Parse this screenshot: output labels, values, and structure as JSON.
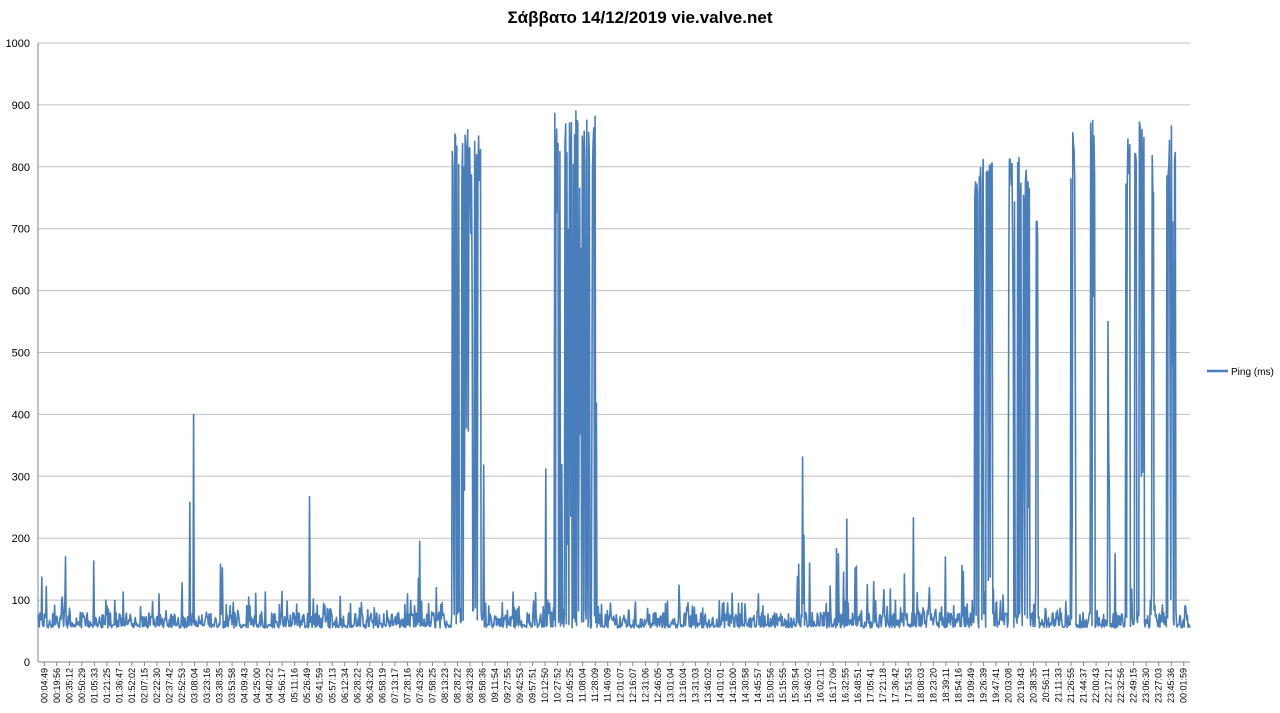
{
  "chart_data": {
    "type": "line",
    "title": "Σάββατο 14/12/2019 vie.valve.net",
    "xlabel": "",
    "ylabel": "",
    "ylim": [
      0,
      1000
    ],
    "yticks": [
      0,
      100,
      200,
      300,
      400,
      500,
      600,
      700,
      800,
      900,
      1000
    ],
    "grid": true,
    "legend_position": "right",
    "color": "#4a7ebb",
    "x_tick_labels": [
      "00:04:49",
      "00:19:56",
      "00:35:12",
      "00:50:29",
      "01:05:33",
      "01:21:25",
      "01:36:47",
      "01:52:02",
      "02:07:15",
      "02:22:30",
      "02:37:42",
      "02:52:53",
      "03:08:04",
      "03:23:16",
      "03:38:35",
      "03:53:58",
      "04:09:43",
      "04:25:00",
      "04:40:22",
      "04:56:17",
      "05:11:16",
      "05:26:49",
      "05:41:59",
      "05:57:13",
      "06:12:34",
      "06:28:22",
      "06:43:20",
      "06:58:19",
      "07:13:17",
      "07:28:16",
      "07:43:26",
      "07:58:25",
      "08:13:23",
      "08:28:22",
      "08:43:28",
      "08:58:36",
      "09:11:54",
      "09:27:55",
      "09:42:53",
      "09:57:51",
      "10:12:50",
      "10:27:52",
      "10:45:25",
      "11:08:04",
      "11:28:09",
      "11:46:09",
      "12:01:07",
      "12:16:07",
      "12:31:06",
      "12:46:05",
      "13:01:04",
      "13:16:04",
      "13:31:03",
      "13:46:02",
      "14:01:01",
      "14:16:00",
      "14:30:58",
      "14:45:57",
      "15:00:56",
      "15:15:55",
      "15:30:54",
      "15:46:02",
      "16:02:11",
      "16:17:09",
      "16:32:55",
      "16:48:51",
      "17:05:41",
      "17:21:18",
      "17:36:42",
      "17:51:53",
      "18:08:03",
      "18:23:20",
      "18:39:11",
      "18:54:16",
      "19:09:49",
      "19:26:39",
      "19:47:41",
      "20:03:08",
      "20:19:43",
      "20:38:35",
      "20:56:11",
      "21:11:33",
      "21:26:55",
      "21:44:37",
      "22:00:43",
      "22:17:21",
      "22:32:56",
      "22:49:15",
      "23:06:30",
      "23:27:03",
      "23:45:36",
      "00:01:59"
    ],
    "series": [
      {
        "name": "Ping (ms)",
        "baseline": [
          55,
          100
        ],
        "spikes": [
          [
            0.9,
            137
          ],
          [
            2.0,
            122
          ],
          [
            5.7,
            105
          ],
          [
            6.4,
            170
          ],
          [
            13.0,
            163
          ],
          [
            20.0,
            113
          ],
          [
            28.4,
            110
          ],
          [
            33.8,
            128
          ],
          [
            35.6,
            258
          ],
          [
            36.4,
            400
          ],
          [
            42.8,
            158
          ],
          [
            43.2,
            152
          ],
          [
            49.4,
            105
          ],
          [
            51.1,
            111
          ],
          [
            53.3,
            113
          ],
          [
            57.2,
            114
          ],
          [
            63.6,
            267
          ],
          [
            64.6,
            102
          ],
          [
            70.9,
            106
          ],
          [
            75.8,
            96
          ],
          [
            86.6,
            110
          ],
          [
            89.1,
            135
          ],
          [
            89.4,
            195
          ],
          [
            93.3,
            120
          ],
          [
            111.4,
            113
          ],
          [
            116.6,
            112
          ],
          [
            119.0,
            312
          ],
          [
            119.4,
            100
          ],
          [
            125.3,
            103
          ],
          [
            150.3,
            124
          ],
          [
            162.7,
            111
          ],
          [
            168.9,
            110
          ],
          [
            178.0,
            138
          ],
          [
            178.3,
            158
          ],
          [
            179.2,
            331
          ],
          [
            179.5,
            205
          ],
          [
            180.9,
            160
          ],
          [
            185.7,
            123
          ],
          [
            187.2,
            183
          ],
          [
            187.6,
            175
          ],
          [
            188.8,
            145
          ],
          [
            189.6,
            231
          ],
          [
            191.5,
            152
          ],
          [
            191.8,
            155
          ],
          [
            194.3,
            125
          ],
          [
            195.8,
            130
          ],
          [
            198.3,
            117
          ],
          [
            199.8,
            118
          ],
          [
            203.0,
            142
          ],
          [
            205.2,
            233
          ],
          [
            206.0,
            112
          ],
          [
            208.9,
            120
          ],
          [
            212.7,
            170
          ],
          [
            216.5,
            156
          ],
          [
            216.9,
            146
          ],
          [
            222.7,
            132
          ],
          [
            223.9,
            118
          ],
          [
            226.2,
            108
          ],
          [
            230.6,
            122
          ],
          [
            233.9,
            112
          ],
          [
            251.1,
            283
          ],
          [
            252.5,
            175
          ],
          [
            256.3,
            118
          ],
          [
            261.0,
            113
          ]
        ],
        "high_bursts": [
          {
            "start": 97.0,
            "end": 104.5,
            "peak": 860,
            "min": 60
          },
          {
            "start": 121.0,
            "end": 131.0,
            "peak": 890,
            "min": 55
          },
          {
            "start": 219.3,
            "end": 223.7,
            "peak": 812,
            "min": 55
          },
          {
            "start": 227.4,
            "end": 232.6,
            "peak": 815,
            "min": 55
          },
          {
            "start": 233.8,
            "end": 234.4,
            "peak": 712,
            "min": 55
          },
          {
            "start": 242.0,
            "end": 243.2,
            "peak": 855,
            "min": 55
          },
          {
            "start": 246.7,
            "end": 247.8,
            "peak": 875,
            "min": 55
          },
          {
            "start": 250.5,
            "end": 251.1,
            "peak": 550,
            "min": 55
          },
          {
            "start": 254.8,
            "end": 256.2,
            "peak": 845,
            "min": 55
          },
          {
            "start": 257.0,
            "end": 259.3,
            "peak": 872,
            "min": 55
          },
          {
            "start": 260.7,
            "end": 261.7,
            "peak": 818,
            "min": 55
          },
          {
            "start": 264.5,
            "end": 266.9,
            "peak": 866,
            "min": 55
          }
        ]
      }
    ]
  }
}
